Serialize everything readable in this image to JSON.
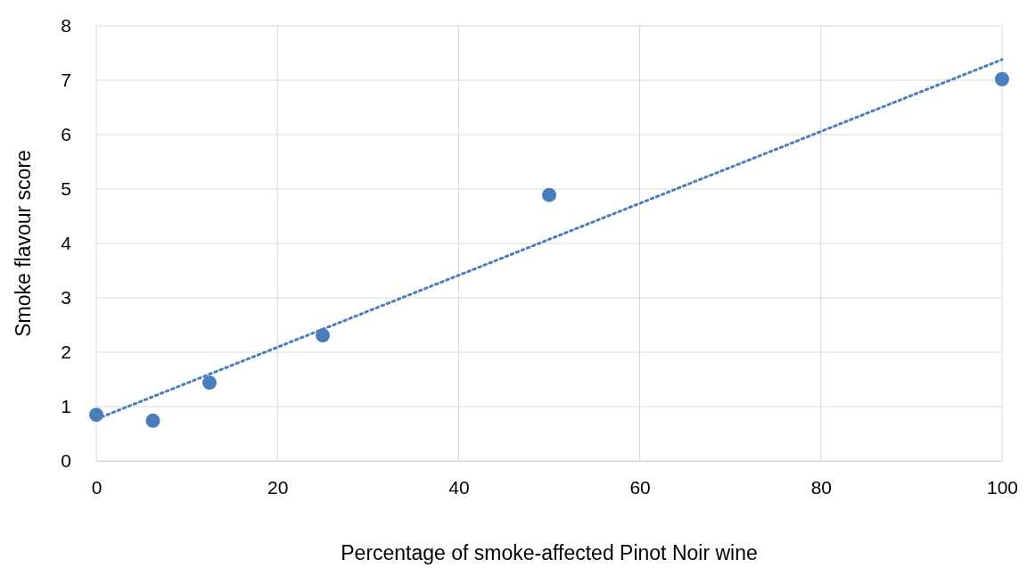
{
  "chart_data": {
    "type": "scatter",
    "xlabel": "Percentage of smoke-affected Pinot Noir wine",
    "ylabel": "Smoke flavour score",
    "xlim": [
      0,
      100
    ],
    "xticks": [
      0,
      20,
      40,
      60,
      80,
      100
    ],
    "ylim": [
      0,
      8
    ],
    "yticks": [
      0,
      1,
      2,
      3,
      4,
      5,
      6,
      7,
      8
    ],
    "grid": true,
    "series": [
      {
        "type": "scatter",
        "color": "#4a7ebb",
        "marker": "circle",
        "x": [
          0,
          6.25,
          12.5,
          25,
          50,
          100
        ],
        "values": [
          0.85,
          0.74,
          1.44,
          2.31,
          4.89,
          7.02
        ]
      },
      {
        "type": "line",
        "color": "#4a7ebb",
        "line_style": "dotted",
        "marker": "none",
        "x": [
          0,
          100
        ],
        "values": [
          0.77,
          7.38
        ]
      }
    ]
  }
}
